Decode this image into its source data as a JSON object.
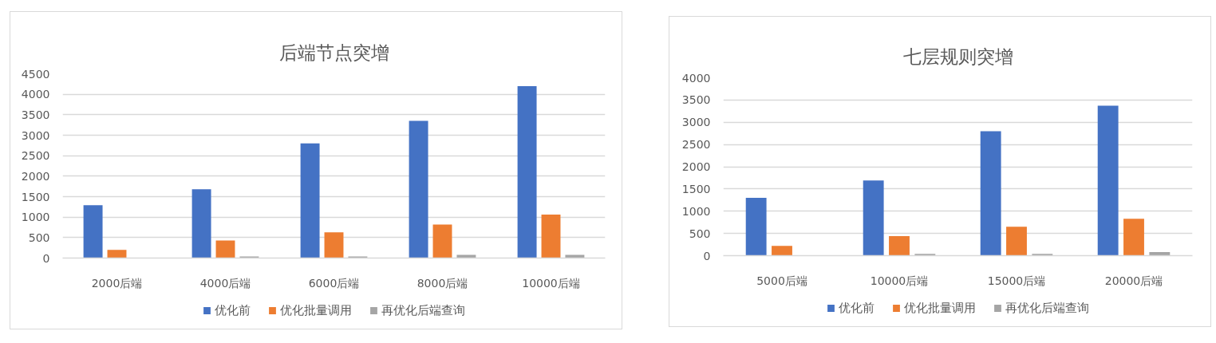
{
  "chart_data": [
    {
      "type": "bar",
      "title": "后端节点突增",
      "categories": [
        "2000后端",
        "4000后端",
        "6000后端",
        "8000后端",
        "10000后端"
      ],
      "series": [
        {
          "name": "优化前",
          "color": "#4472c4",
          "values": [
            1290,
            1680,
            2800,
            3350,
            4200
          ]
        },
        {
          "name": "优化批量调用",
          "color": "#ed7d31",
          "values": [
            200,
            430,
            630,
            820,
            1060
          ]
        },
        {
          "name": "再优化后端查询",
          "color": "#a5a5a5",
          "values": [
            null,
            40,
            40,
            80,
            80
          ]
        }
      ],
      "ylim": [
        0,
        4500
      ],
      "yticks": [
        0,
        500,
        1000,
        1500,
        2000,
        2500,
        3000,
        3500,
        4000,
        4500
      ],
      "grid": "y",
      "legend": "bottom"
    },
    {
      "type": "bar",
      "title": "七层规则突增",
      "categories": [
        "5000后端",
        "10000后端",
        "15000后端",
        "20000后端"
      ],
      "series": [
        {
          "name": "优化前",
          "color": "#4472c4",
          "values": [
            1300,
            1690,
            2800,
            3370
          ]
        },
        {
          "name": "优化批量调用",
          "color": "#ed7d31",
          "values": [
            220,
            440,
            650,
            830
          ]
        },
        {
          "name": "再优化后端查询",
          "color": "#a5a5a5",
          "values": [
            null,
            40,
            40,
            80
          ]
        }
      ],
      "ylim": [
        0,
        4000
      ],
      "yticks": [
        0,
        500,
        1000,
        1500,
        2000,
        2500,
        3000,
        3500,
        4000
      ],
      "grid": "y",
      "legend": "bottom"
    }
  ]
}
